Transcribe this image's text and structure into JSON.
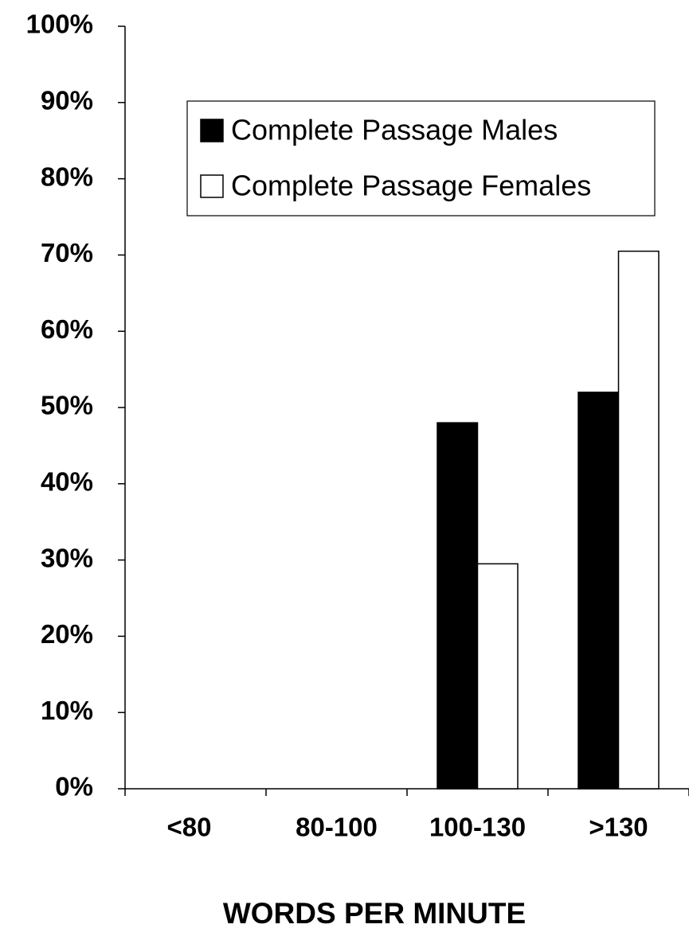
{
  "chart_data": {
    "type": "bar",
    "x_label": "WORDS PER MINUTE",
    "categories": [
      "<80",
      "80-100",
      "100-130",
      ">130"
    ],
    "series": [
      {
        "name": "Complete Passage Males",
        "color": "#000000",
        "values": [
          0,
          0,
          48,
          52
        ]
      },
      {
        "name": "Complete Passage Females",
        "color": "#ffffff",
        "values": [
          0,
          0,
          29.5,
          70.5
        ]
      }
    ],
    "ylim": [
      0,
      100
    ],
    "yticks": [
      {
        "value": 0,
        "label": "0%"
      },
      {
        "value": 10,
        "label": "10%"
      },
      {
        "value": 20,
        "label": "20%"
      },
      {
        "value": 30,
        "label": "30%"
      },
      {
        "value": 40,
        "label": "40%"
      },
      {
        "value": 50,
        "label": "50%"
      },
      {
        "value": 60,
        "label": "60%"
      },
      {
        "value": 70,
        "label": "70%"
      },
      {
        "value": 80,
        "label": "80%"
      },
      {
        "value": 90,
        "label": "90%"
      },
      {
        "value": 100,
        "label": "100%"
      }
    ],
    "grid": false
  }
}
